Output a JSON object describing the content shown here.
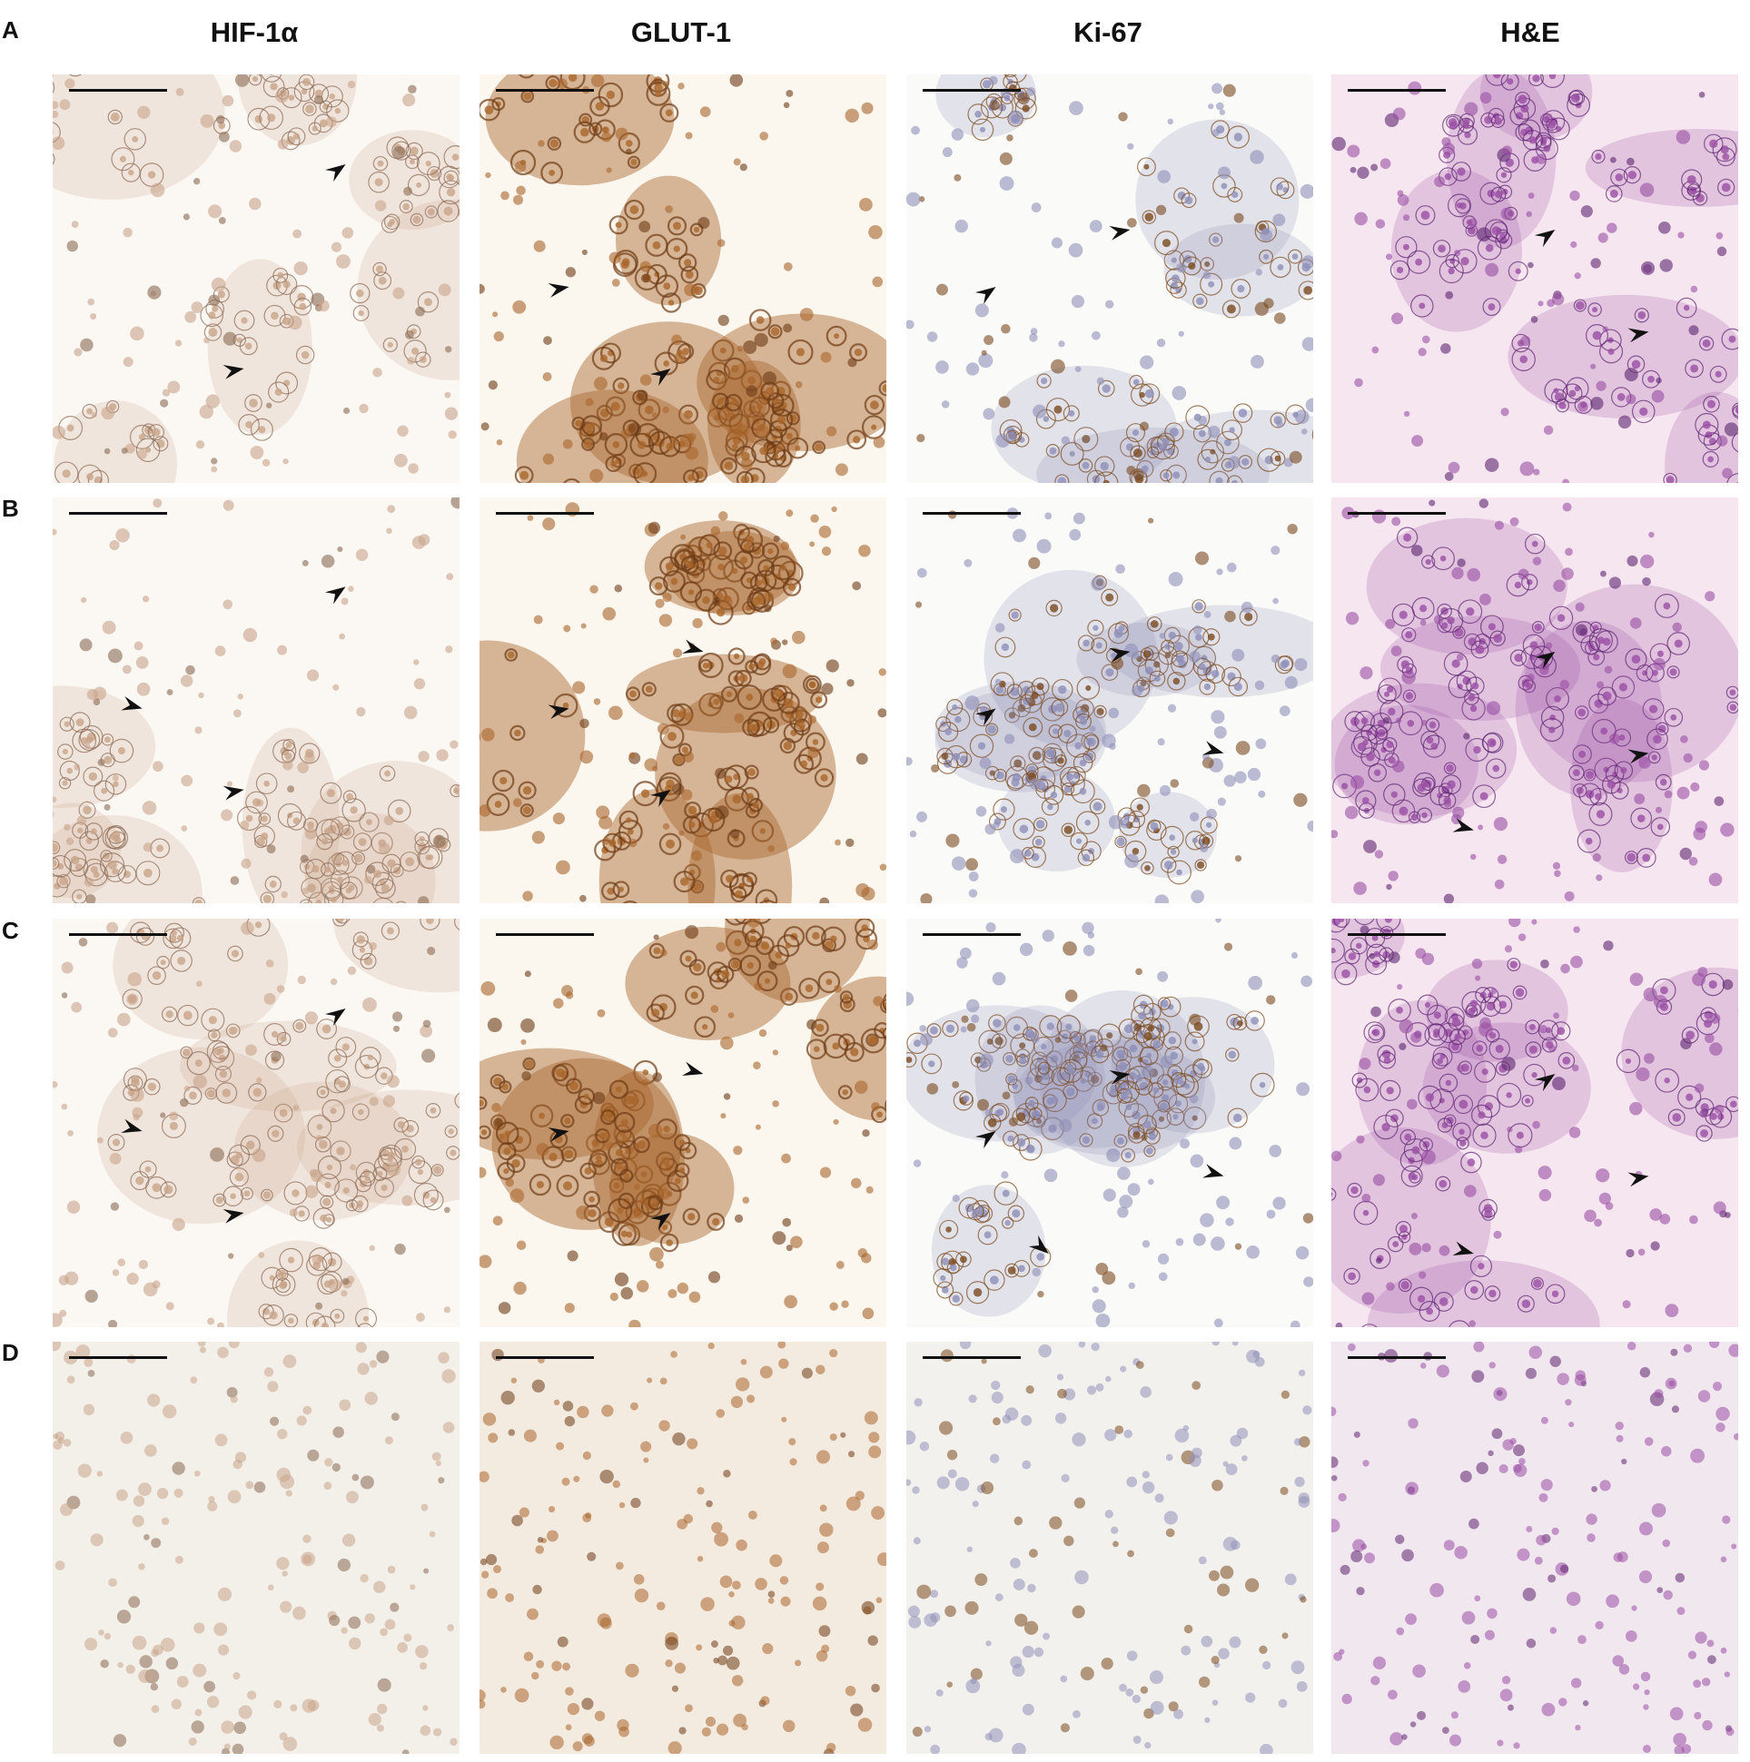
{
  "columns": [
    {
      "id": "hif",
      "label": "HIF-1α"
    },
    {
      "id": "glut",
      "label": "GLUT-1"
    },
    {
      "id": "ki67",
      "label": "Ki-67"
    },
    {
      "id": "he",
      "label": "H&E"
    }
  ],
  "rows": [
    {
      "id": "A",
      "label": "A"
    },
    {
      "id": "B",
      "label": "B"
    },
    {
      "id": "C",
      "label": "C"
    },
    {
      "id": "D",
      "label": "D"
    }
  ],
  "stain_colors": {
    "hif": {
      "bg": "#fbf8f4",
      "cell": "#c8a48a",
      "dark": "#8b6a54"
    },
    "glut": {
      "bg": "#fbf6ee",
      "cell": "#a9662c",
      "dark": "#6d3a14"
    },
    "ki67": {
      "bg": "#fafaf9",
      "cell": "#8f8fb8",
      "dark": "#7a4a1e"
    },
    "he": {
      "bg": "#f6e6f0",
      "cell": "#9a4fa4",
      "dark": "#5e2470"
    }
  },
  "panel_bg": {
    "D": {
      "hif": "#f3efe9",
      "glut": "#f3ebe0",
      "ki67": "#f3f1ee",
      "he": "#f1e7ef"
    }
  },
  "arrowheads": {
    "A": {
      "hif": 2,
      "glut": 2,
      "ki67": 2,
      "he": 2
    },
    "B": {
      "hif": 3,
      "glut": 3,
      "ki67": 3,
      "he": 3
    },
    "C": {
      "hif": 3,
      "glut": 3,
      "ki67": 4,
      "he": 3
    },
    "D": {
      "hif": 0,
      "glut": 0,
      "ki67": 0,
      "he": 0
    }
  }
}
